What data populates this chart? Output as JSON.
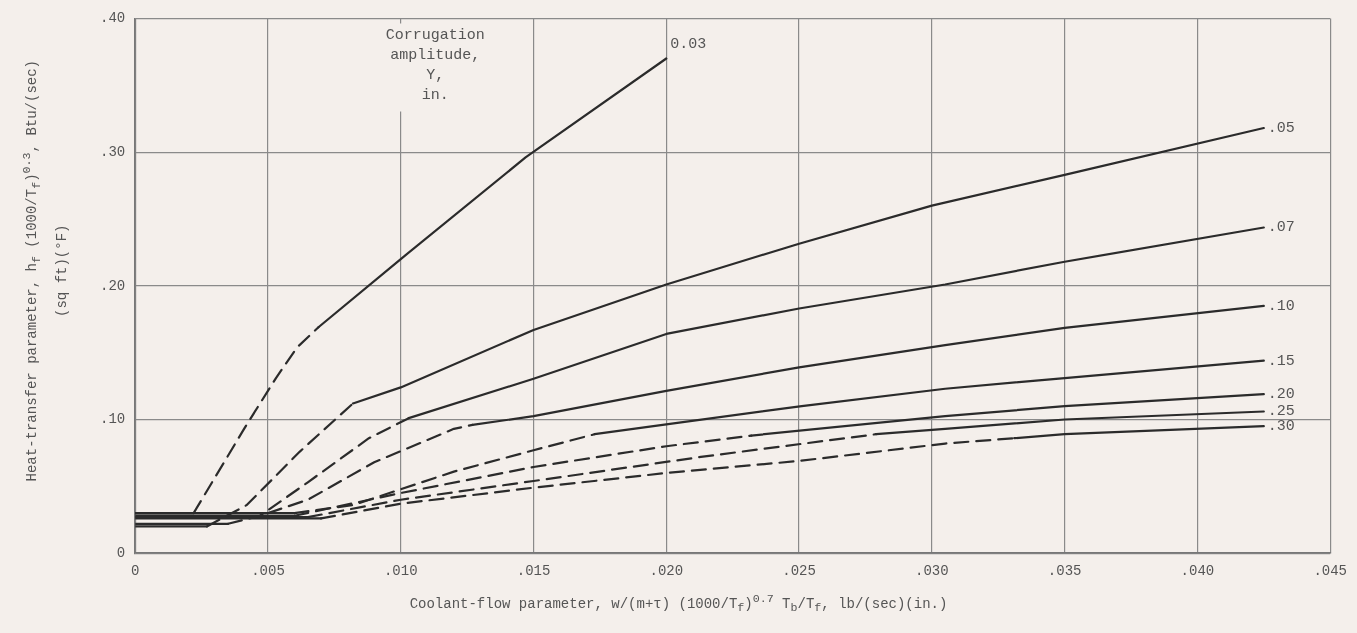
{
  "chart_data": {
    "type": "line",
    "xlabel": "Coolant-flow parameter, w/(m+τ) (1000/T$_{f}$)$^{0.7}$ T$_{b}$/T$_{f}$, lb/(sec)(in.)",
    "ylabel": "Heat-transfer parameter, h$_{f}$ (1000/T$_{f}$)$^{0.3}$, Btu/(sec)(sq ft)(°F)",
    "legend_title": "Corrugation amplitude, Y, in.",
    "xlim": [
      0,
      0.045
    ],
    "ylim": [
      0,
      0.4
    ],
    "xticks": [
      0,
      {
        "value": 0.005,
        "label": ".005"
      },
      {
        "value": 0.01,
        "label": ".010"
      },
      {
        "value": 0.015,
        "label": ".015"
      },
      {
        "value": 0.02,
        "label": ".020"
      },
      {
        "value": 0.025,
        "label": ".025"
      },
      {
        "value": 0.03,
        "label": ".030"
      },
      {
        "value": 0.035,
        "label": ".035"
      },
      {
        "value": 0.04,
        "label": ".040"
      },
      {
        "value": 0.045,
        "label": ".045"
      }
    ],
    "yticks": [
      0,
      {
        "value": 0.1,
        "label": ".10"
      },
      {
        "value": 0.2,
        "label": ".20"
      },
      {
        "value": 0.3,
        "label": ".30"
      },
      {
        "value": 0.4,
        "label": ".40"
      }
    ],
    "grid": true,
    "legend": false,
    "marker": "none",
    "series": [
      {
        "color": "#2b2b2b",
        "line_style": "solid",
        "x": [
          0,
          0.0022
        ],
        "values": [
          0.03,
          0.03
        ]
      },
      {
        "color": "#2b2b2b",
        "line_style": "dashed",
        "x": [
          0.0022,
          0.0041,
          0.0053,
          0.0061,
          0.0069
        ],
        "values": [
          0.03,
          0.093,
          0.131,
          0.154,
          0.169
        ]
      },
      {
        "name": "0.03",
        "color": "#2b2b2b",
        "line_style": "solid",
        "x": [
          0.0069,
          0.01,
          0.0147,
          0.02
        ],
        "values": [
          0.169,
          0.22,
          0.296,
          0.37
        ]
      },
      {
        "color": "#2b2b2b",
        "line_style": "solid",
        "x": [
          0,
          0.0027
        ],
        "values": [
          0.02,
          0.02
        ]
      },
      {
        "color": "#2b2b2b",
        "line_style": "dashed",
        "x": [
          0.0027,
          0.0042,
          0.0062,
          0.0082
        ],
        "values": [
          0.02,
          0.036,
          0.076,
          0.112
        ]
      },
      {
        "name": ".05",
        "color": "#2b2b2b",
        "line_style": "solid",
        "x": [
          0.0082,
          0.01,
          0.015,
          0.02,
          0.025,
          0.03,
          0.035,
          0.0425
        ],
        "values": [
          0.112,
          0.124,
          0.167,
          0.201,
          0.2315,
          0.26,
          0.283,
          0.318
        ]
      },
      {
        "color": "#2b2b2b",
        "line_style": "solid",
        "x": [
          0,
          0.0035
        ],
        "values": [
          0.022,
          0.022
        ]
      },
      {
        "color": "#2b2b2b",
        "line_style": "dashed",
        "x": [
          0.0035,
          0.0047,
          0.0065,
          0.0088,
          0.0103
        ],
        "values": [
          0.022,
          0.028,
          0.053,
          0.086,
          0.101
        ]
      },
      {
        "name": ".07",
        "color": "#2b2b2b",
        "line_style": "solid",
        "x": [
          0.0103,
          0.015,
          0.02,
          0.025,
          0.0305,
          0.035,
          0.0425
        ],
        "values": [
          0.101,
          0.1305,
          0.164,
          0.183,
          0.201,
          0.218,
          0.2436
        ]
      },
      {
        "color": "#2b2b2b",
        "line_style": "solid",
        "x": [
          0,
          0.005
        ],
        "values": [
          0.03,
          0.03
        ]
      },
      {
        "color": "#2b2b2b",
        "line_style": "dashed",
        "x": [
          0.005,
          0.0065,
          0.009,
          0.012,
          0.0127
        ],
        "values": [
          0.03,
          0.04,
          0.068,
          0.093,
          0.096
        ]
      },
      {
        "name": ".10",
        "color": "#2b2b2b",
        "line_style": "solid",
        "x": [
          0.0127,
          0.015,
          0.02,
          0.025,
          0.0305,
          0.035,
          0.0425
        ],
        "values": [
          0.096,
          0.1025,
          0.1214,
          0.139,
          0.1556,
          0.1685,
          0.185
        ]
      },
      {
        "color": "#2b2b2b",
        "line_style": "solid",
        "x": [
          0,
          0.006
        ],
        "values": [
          0.03,
          0.03
        ]
      },
      {
        "color": "#2b2b2b",
        "line_style": "dashed",
        "x": [
          0.006,
          0.0082,
          0.012,
          0.015,
          0.0173
        ],
        "values": [
          0.03,
          0.036,
          0.061,
          0.077,
          0.089
        ]
      },
      {
        "name": ".15",
        "color": "#2b2b2b",
        "line_style": "solid",
        "x": [
          0.0173,
          0.02,
          0.0251,
          0.0305,
          0.035,
          0.0425
        ],
        "values": [
          0.089,
          0.0964,
          0.11,
          0.123,
          0.131,
          0.144
        ]
      },
      {
        "color": "#2b2b2b",
        "line_style": "solid",
        "x": [
          0,
          0.006
        ],
        "values": [
          0.028,
          0.028
        ]
      },
      {
        "color": "#2b2b2b",
        "line_style": "dashed",
        "x": [
          0.006,
          0.01,
          0.015,
          0.02,
          0.0232
        ],
        "values": [
          0.028,
          0.045,
          0.0645,
          0.08,
          0.088
        ]
      },
      {
        "name": ".20",
        "color": "#2b2b2b",
        "line_style": "solid",
        "x": [
          0.0232,
          0.0305,
          0.035,
          0.0425
        ],
        "values": [
          0.088,
          0.1025,
          0.11,
          0.119
        ]
      },
      {
        "color": "#2b2b2b",
        "line_style": "solid",
        "x": [
          0,
          0.0065
        ],
        "values": [
          0.027,
          0.027
        ]
      },
      {
        "color": "#2b2b2b",
        "line_style": "dashed",
        "x": [
          0.0065,
          0.01,
          0.015,
          0.0213,
          0.0279
        ],
        "values": [
          0.027,
          0.04,
          0.054,
          0.072,
          0.089
        ]
      },
      {
        "name": ".25",
        "color": "#2b2b2b",
        "line_style": "solid",
        "x": [
          0.0279,
          0.0305,
          0.035,
          0.0425
        ],
        "values": [
          0.089,
          0.093,
          0.1,
          0.106
        ]
      },
      {
        "color": "#2b2b2b",
        "line_style": "solid",
        "x": [
          0,
          0.007
        ],
        "values": [
          0.026,
          0.026
        ]
      },
      {
        "color": "#2b2b2b",
        "line_style": "dashed",
        "x": [
          0.007,
          0.01,
          0.015,
          0.02,
          0.025,
          0.0305,
          0.0331
        ],
        "values": [
          0.026,
          0.037,
          0.049,
          0.06,
          0.069,
          0.082,
          0.086
        ]
      },
      {
        "name": ".30",
        "color": "#2b2b2b",
        "line_style": "solid",
        "x": [
          0.0331,
          0.035,
          0.0425
        ],
        "values": [
          0.086,
          0.089,
          0.095
        ]
      }
    ]
  }
}
